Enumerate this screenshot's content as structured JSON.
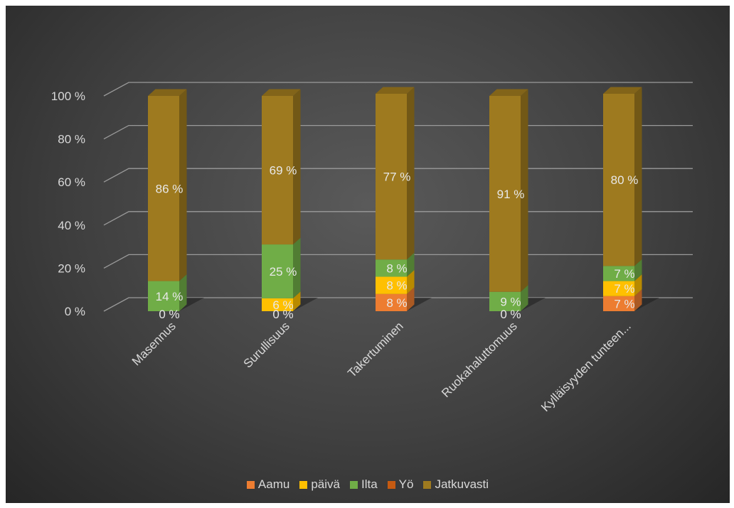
{
  "chart_data": {
    "type": "bar",
    "stacked": "percent",
    "three_d": true,
    "title": "",
    "xlabel": "",
    "ylabel": "",
    "ylim": [
      0,
      100
    ],
    "yticks": [
      "0 %",
      "20 %",
      "40 %",
      "60 %",
      "80 %",
      "100 %"
    ],
    "categories": [
      "Masennus",
      "Surullisuus",
      "Takertuminen",
      "Ruokahaluttomuus",
      "Kylläisyyden tunteen..."
    ],
    "legend_position": "bottom",
    "grid": true,
    "series": [
      {
        "name": "Aamu",
        "color": "#ed7d31",
        "values": [
          0,
          0,
          8,
          0,
          7
        ],
        "labels": [
          "0 %",
          "0 %",
          "8 %",
          "0 %",
          "7 %"
        ]
      },
      {
        "name": "päivä",
        "color": "#ffc000",
        "values": [
          0,
          6,
          8,
          0,
          7
        ],
        "labels": [
          "",
          "6 %",
          "8 %",
          "",
          "7 %"
        ]
      },
      {
        "name": "Ilta",
        "color": "#70ad47",
        "values": [
          14,
          25,
          8,
          9,
          7
        ],
        "labels": [
          "14 %",
          "25 %",
          "8 %",
          "9 %",
          "7 %"
        ]
      },
      {
        "name": "Yö",
        "color": "#c55a11",
        "values": [
          0,
          0,
          0,
          0,
          0
        ],
        "labels": [
          "",
          "",
          "",
          "",
          ""
        ]
      },
      {
        "name": "Jatkuvasti",
        "color": "#9e7a1f",
        "values": [
          86,
          69,
          77,
          91,
          80
        ],
        "labels": [
          "86 %",
          "69 %",
          "77 %",
          "91 %",
          "80 %"
        ]
      }
    ]
  }
}
